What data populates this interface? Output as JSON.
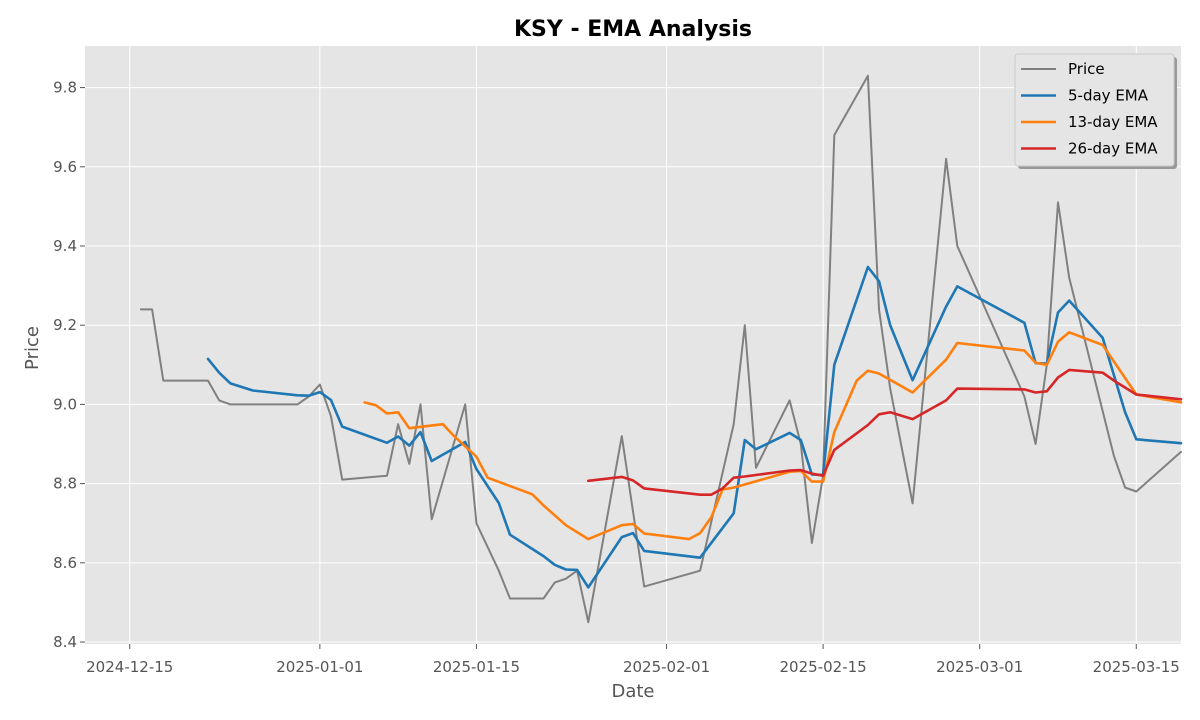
{
  "chart_data": {
    "type": "line",
    "title": "KSY - EMA Analysis",
    "xlabel": "Date",
    "ylabel": "Price",
    "x_axis_type": "date",
    "xlim": [
      "2024-12-11",
      "2025-03-19"
    ],
    "ylim": [
      8.395,
      9.905
    ],
    "x_ticks": [
      "2024-12-15",
      "2025-01-01",
      "2025-01-15",
      "2025-02-01",
      "2025-02-15",
      "2025-03-01",
      "2025-03-15"
    ],
    "y_ticks": [
      8.4,
      8.6,
      8.8,
      9.0,
      9.2,
      9.4,
      9.6,
      9.8
    ],
    "y_tick_labels": [
      "8.4",
      "8.6",
      "8.8",
      "9.0",
      "9.2",
      "9.4",
      "9.6",
      "9.8"
    ],
    "grid": true,
    "legend_position": "top-right",
    "background_color": "#e5e5e5",
    "series": [
      {
        "name": "Price",
        "color": "#808080",
        "points": [
          [
            "2024-12-16",
            9.24
          ],
          [
            "2024-12-17",
            9.24
          ],
          [
            "2024-12-18",
            9.06
          ],
          [
            "2024-12-22",
            9.06
          ],
          [
            "2024-12-23",
            9.01
          ],
          [
            "2024-12-24",
            9.0
          ],
          [
            "2024-12-30",
            9.0
          ],
          [
            "2024-12-31",
            9.02
          ],
          [
            "2025-01-01",
            9.05
          ],
          [
            "2025-01-02",
            8.97
          ],
          [
            "2025-01-03",
            8.81
          ],
          [
            "2025-01-07",
            8.82
          ],
          [
            "2025-01-08",
            8.95
          ],
          [
            "2025-01-09",
            8.85
          ],
          [
            "2025-01-10",
            9.0
          ],
          [
            "2025-01-11",
            8.71
          ],
          [
            "2025-01-14",
            9.0
          ],
          [
            "2025-01-15",
            8.7
          ],
          [
            "2025-01-17",
            8.58
          ],
          [
            "2025-01-18",
            8.51
          ],
          [
            "2025-01-21",
            8.51
          ],
          [
            "2025-01-22",
            8.55
          ],
          [
            "2025-01-23",
            8.56
          ],
          [
            "2025-01-24",
            8.58
          ],
          [
            "2025-01-25",
            8.45
          ],
          [
            "2025-01-28",
            8.92
          ],
          [
            "2025-01-30",
            8.54
          ],
          [
            "2025-02-04",
            8.58
          ],
          [
            "2025-02-07",
            8.95
          ],
          [
            "2025-02-08",
            9.2
          ],
          [
            "2025-02-09",
            8.84
          ],
          [
            "2025-02-12",
            9.01
          ],
          [
            "2025-02-13",
            8.9
          ],
          [
            "2025-02-14",
            8.65
          ],
          [
            "2025-02-15",
            8.82
          ],
          [
            "2025-02-16",
            9.68
          ],
          [
            "2025-02-19",
            9.83
          ],
          [
            "2025-02-20",
            9.24
          ],
          [
            "2025-02-21",
            9.04
          ],
          [
            "2025-02-23",
            8.75
          ],
          [
            "2025-02-26",
            9.62
          ],
          [
            "2025-02-27",
            9.4
          ],
          [
            "2025-03-05",
            9.02
          ],
          [
            "2025-03-06",
            8.9
          ],
          [
            "2025-03-07",
            9.1
          ],
          [
            "2025-03-08",
            9.51
          ],
          [
            "2025-03-09",
            9.32
          ],
          [
            "2025-03-13",
            8.87
          ],
          [
            "2025-03-14",
            8.79
          ],
          [
            "2025-03-15",
            8.78
          ],
          [
            "2025-03-19",
            8.88
          ]
        ]
      },
      {
        "name": "5-day EMA",
        "color": "#1f77b4",
        "points": [
          [
            "2024-12-22",
            9.115
          ],
          [
            "2024-12-23",
            9.08
          ],
          [
            "2024-12-24",
            9.053
          ],
          [
            "2024-12-26",
            9.035
          ],
          [
            "2024-12-30",
            9.023
          ],
          [
            "2024-12-31",
            9.022
          ],
          [
            "2025-01-01",
            9.031
          ],
          [
            "2025-01-02",
            9.011
          ],
          [
            "2025-01-03",
            8.944
          ],
          [
            "2025-01-07",
            8.903
          ],
          [
            "2025-01-08",
            8.919
          ],
          [
            "2025-01-09",
            8.896
          ],
          [
            "2025-01-10",
            8.93
          ],
          [
            "2025-01-11",
            8.857
          ],
          [
            "2025-01-14",
            8.905
          ],
          [
            "2025-01-15",
            8.837
          ],
          [
            "2025-01-17",
            8.751
          ],
          [
            "2025-01-18",
            8.671
          ],
          [
            "2025-01-21",
            8.617
          ],
          [
            "2025-01-22",
            8.595
          ],
          [
            "2025-01-23",
            8.583
          ],
          [
            "2025-01-24",
            8.582
          ],
          [
            "2025-01-25",
            8.538
          ],
          [
            "2025-01-28",
            8.665
          ],
          [
            "2025-01-29",
            8.675
          ],
          [
            "2025-01-30",
            8.63
          ],
          [
            "2025-02-04",
            8.613
          ],
          [
            "2025-02-07",
            8.725
          ],
          [
            "2025-02-08",
            8.91
          ],
          [
            "2025-02-09",
            8.887
          ],
          [
            "2025-02-12",
            8.928
          ],
          [
            "2025-02-13",
            8.91
          ],
          [
            "2025-02-14",
            8.823
          ],
          [
            "2025-02-15",
            8.822
          ],
          [
            "2025-02-16",
            9.1
          ],
          [
            "2025-02-19",
            9.347
          ],
          [
            "2025-02-20",
            9.311
          ],
          [
            "2025-02-21",
            9.2
          ],
          [
            "2025-02-23",
            9.061
          ],
          [
            "2025-02-26",
            9.247
          ],
          [
            "2025-02-27",
            9.298
          ],
          [
            "2025-03-05",
            9.206
          ],
          [
            "2025-03-06",
            9.104
          ],
          [
            "2025-03-07",
            9.103
          ],
          [
            "2025-03-08",
            9.232
          ],
          [
            "2025-03-09",
            9.262
          ],
          [
            "2025-03-12",
            9.168
          ],
          [
            "2025-03-14",
            8.98
          ],
          [
            "2025-03-15",
            8.912
          ],
          [
            "2025-03-19",
            8.902
          ]
        ]
      },
      {
        "name": "13-day EMA",
        "color": "#ff7f0e",
        "points": [
          [
            "2025-01-05",
            9.005
          ],
          [
            "2025-01-06",
            8.998
          ],
          [
            "2025-01-07",
            8.977
          ],
          [
            "2025-01-08",
            8.98
          ],
          [
            "2025-01-09",
            8.94
          ],
          [
            "2025-01-12",
            8.95
          ],
          [
            "2025-01-13",
            8.92
          ],
          [
            "2025-01-15",
            8.868
          ],
          [
            "2025-01-16",
            8.815
          ],
          [
            "2025-01-20",
            8.773
          ],
          [
            "2025-01-21",
            8.745
          ],
          [
            "2025-01-22",
            8.72
          ],
          [
            "2025-01-23",
            8.695
          ],
          [
            "2025-01-25",
            8.66
          ],
          [
            "2025-01-28",
            8.695
          ],
          [
            "2025-01-29",
            8.698
          ],
          [
            "2025-01-30",
            8.674
          ],
          [
            "2025-02-03",
            8.66
          ],
          [
            "2025-02-04",
            8.675
          ],
          [
            "2025-02-05",
            8.715
          ],
          [
            "2025-02-06",
            8.785
          ],
          [
            "2025-02-07",
            8.79
          ],
          [
            "2025-02-12",
            8.83
          ],
          [
            "2025-02-13",
            8.832
          ],
          [
            "2025-02-14",
            8.805
          ],
          [
            "2025-02-15",
            8.805
          ],
          [
            "2025-02-16",
            8.93
          ],
          [
            "2025-02-18",
            9.06
          ],
          [
            "2025-02-19",
            9.085
          ],
          [
            "2025-02-20",
            9.078
          ],
          [
            "2025-02-23",
            9.03
          ],
          [
            "2025-02-26",
            9.113
          ],
          [
            "2025-02-27",
            9.155
          ],
          [
            "2025-03-05",
            9.136
          ],
          [
            "2025-03-06",
            9.105
          ],
          [
            "2025-03-07",
            9.1
          ],
          [
            "2025-03-08",
            9.158
          ],
          [
            "2025-03-09",
            9.182
          ],
          [
            "2025-03-12",
            9.15
          ],
          [
            "2025-03-15",
            9.025
          ],
          [
            "2025-03-19",
            9.005
          ]
        ]
      },
      {
        "name": "26-day EMA",
        "color": "#d62728",
        "points": [
          [
            "2025-01-25",
            8.807
          ],
          [
            "2025-01-28",
            8.817
          ],
          [
            "2025-01-29",
            8.808
          ],
          [
            "2025-01-30",
            8.788
          ],
          [
            "2025-02-04",
            8.772
          ],
          [
            "2025-02-05",
            8.772
          ],
          [
            "2025-02-06",
            8.788
          ],
          [
            "2025-02-07",
            8.815
          ],
          [
            "2025-02-08",
            8.818
          ],
          [
            "2025-02-12",
            8.833
          ],
          [
            "2025-02-13",
            8.834
          ],
          [
            "2025-02-14",
            8.825
          ],
          [
            "2025-02-15",
            8.82
          ],
          [
            "2025-02-16",
            8.885
          ],
          [
            "2025-02-19",
            8.948
          ],
          [
            "2025-02-20",
            8.975
          ],
          [
            "2025-02-21",
            8.98
          ],
          [
            "2025-02-23",
            8.963
          ],
          [
            "2025-02-26",
            9.01
          ],
          [
            "2025-02-27",
            9.04
          ],
          [
            "2025-03-05",
            9.038
          ],
          [
            "2025-03-06",
            9.03
          ],
          [
            "2025-03-07",
            9.033
          ],
          [
            "2025-03-08",
            9.068
          ],
          [
            "2025-03-09",
            9.087
          ],
          [
            "2025-03-12",
            9.08
          ],
          [
            "2025-03-13",
            9.06
          ],
          [
            "2025-03-15",
            9.025
          ],
          [
            "2025-03-19",
            9.013
          ]
        ]
      }
    ]
  }
}
